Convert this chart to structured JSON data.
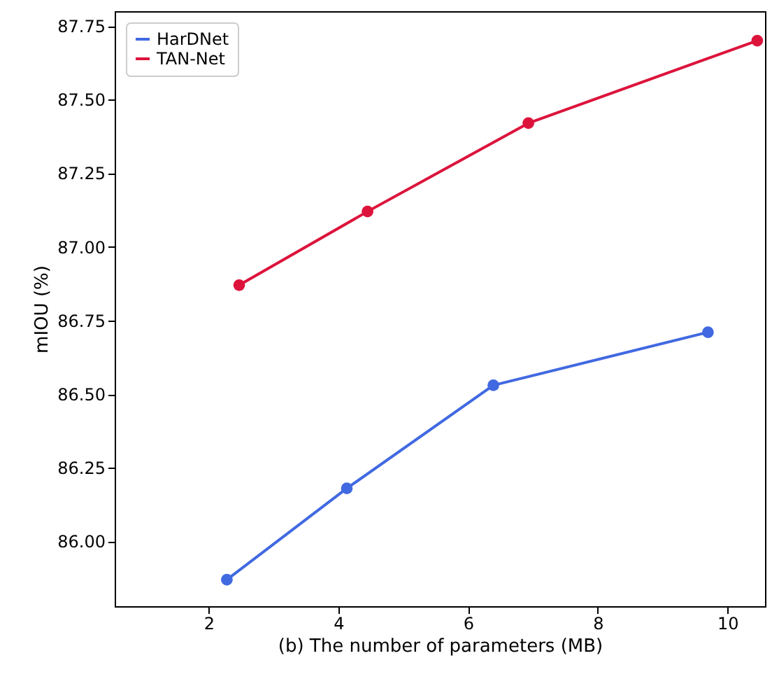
{
  "chart_data": {
    "type": "line",
    "xlabel": "(b) The number of parameters (MB)",
    "ylabel": "mIOU (%)",
    "series": [
      {
        "name": "HarDNet",
        "color": "#4169e1",
        "x": [
          2.28,
          4.13,
          6.39,
          9.7
        ],
        "values": [
          85.87,
          86.18,
          86.53,
          86.71
        ]
      },
      {
        "name": "TAN-Net",
        "color": "#dc143c",
        "x": [
          2.47,
          4.45,
          6.93,
          10.46
        ],
        "values": [
          86.87,
          87.12,
          87.42,
          87.7
        ]
      }
    ],
    "xlim": [
      0.55,
      10.58
    ],
    "ylim": [
      85.78,
      87.8
    ],
    "xticks": [
      2,
      4,
      6,
      8,
      10
    ],
    "yticks": [
      {
        "value": 86,
        "label": "86.00"
      },
      {
        "value": 86.25,
        "label": "86.25"
      },
      {
        "value": 86.5,
        "label": "86.50"
      },
      {
        "value": 86.75,
        "label": "86.75"
      },
      {
        "value": 87,
        "label": "87.00"
      },
      {
        "value": 87.25,
        "label": "87.25"
      },
      {
        "value": 87.5,
        "label": "87.50"
      },
      {
        "value": 87.75,
        "label": "87.75"
      }
    ],
    "legend": "top left",
    "marker": "circle",
    "line_style": "solid",
    "grid": false
  }
}
